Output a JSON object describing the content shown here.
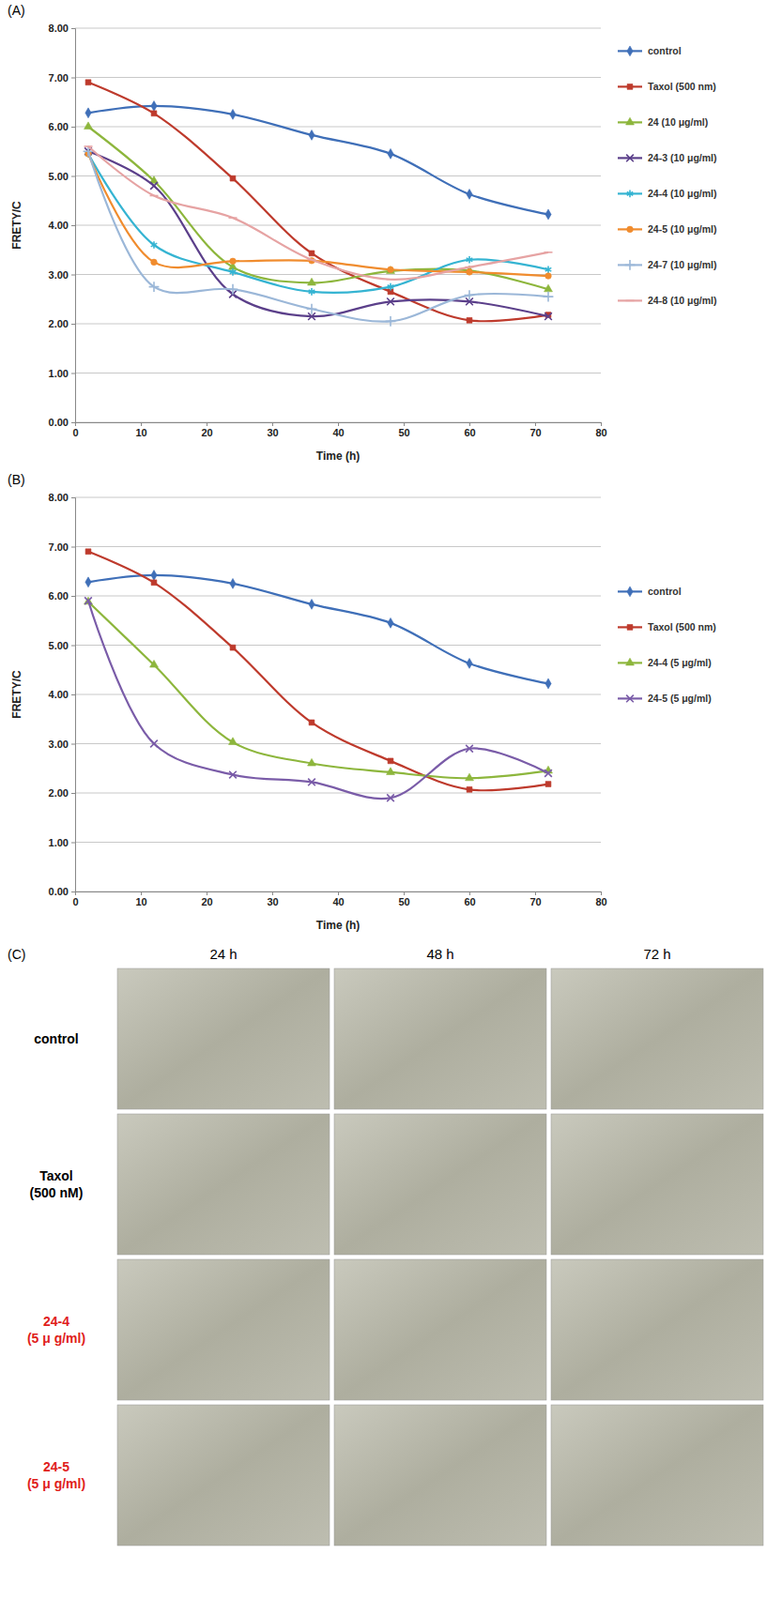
{
  "chart_data": [
    {
      "type": "line",
      "panel_label": "(A)",
      "x_label": "Time (h)",
      "y_label": "FRETY/C",
      "x": [
        2,
        12,
        24,
        36,
        48,
        60,
        72
      ],
      "xlim": [
        0,
        80
      ],
      "xticks": [
        0,
        10,
        20,
        30,
        40,
        50,
        60,
        70,
        80
      ],
      "ylim": [
        0,
        8
      ],
      "yticks": [
        {
          "value": 0,
          "label": "0.00"
        },
        {
          "value": 1,
          "label": "1.00"
        },
        {
          "value": 2,
          "label": "2.00"
        },
        {
          "value": 3,
          "label": "3.00"
        },
        {
          "value": 4,
          "label": "4.00"
        },
        {
          "value": 5,
          "label": "5.00"
        },
        {
          "value": 6,
          "label": "6.00"
        },
        {
          "value": 7,
          "label": "7.00"
        },
        {
          "value": 8,
          "label": "8.00"
        }
      ],
      "grid": true,
      "legend": "right",
      "line_style": "smooth",
      "series": [
        {
          "name": "control",
          "color": "#3f6fb8",
          "marker": "diamond",
          "values": [
            6.28,
            6.42,
            6.25,
            5.83,
            5.45,
            4.63,
            4.22
          ]
        },
        {
          "name": "Taxol (500 nm)",
          "color": "#be3a2c",
          "marker": "square",
          "values": [
            6.9,
            6.27,
            4.95,
            3.43,
            2.65,
            2.07,
            2.18
          ]
        },
        {
          "name": "24 (10 μg/ml)",
          "color": "#8db63c",
          "marker": "triangle",
          "values": [
            6.0,
            4.9,
            3.15,
            2.83,
            3.07,
            3.08,
            2.7
          ]
        },
        {
          "name": "24-3 (10 μg/ml)",
          "color": "#5b3f8a",
          "marker": "x",
          "values": [
            5.5,
            4.8,
            2.6,
            2.15,
            2.45,
            2.45,
            2.15
          ]
        },
        {
          "name": "24-4 (10 μg/ml)",
          "color": "#35b4d2",
          "marker": "asterisk",
          "values": [
            5.45,
            3.6,
            3.05,
            2.65,
            2.75,
            3.3,
            3.1
          ]
        },
        {
          "name": "24-5 (10 μg/ml)",
          "color": "#f08c2e",
          "marker": "circle",
          "values": [
            5.45,
            3.25,
            3.27,
            3.28,
            3.1,
            3.05,
            2.97
          ]
        },
        {
          "name": "24-7 (10 μg/ml)",
          "color": "#9bb7d8",
          "marker": "plus",
          "values": [
            5.5,
            2.75,
            2.7,
            2.3,
            2.05,
            2.58,
            2.55
          ]
        },
        {
          "name": "24-8 (10 μg/ml)",
          "color": "#e6a3a3",
          "marker": "dash",
          "values": [
            5.6,
            4.6,
            4.15,
            3.3,
            2.9,
            3.15,
            3.45
          ]
        }
      ]
    },
    {
      "type": "line",
      "panel_label": "(B)",
      "x_label": "Time (h)",
      "y_label": "FRETY/C",
      "x": [
        2,
        12,
        24,
        36,
        48,
        60,
        72
      ],
      "xlim": [
        0,
        80
      ],
      "xticks": [
        0,
        10,
        20,
        30,
        40,
        50,
        60,
        70,
        80
      ],
      "ylim": [
        0,
        8
      ],
      "yticks": [
        {
          "value": 0,
          "label": "0.00"
        },
        {
          "value": 1,
          "label": "1.00"
        },
        {
          "value": 2,
          "label": "2.00"
        },
        {
          "value": 3,
          "label": "3.00"
        },
        {
          "value": 4,
          "label": "4.00"
        },
        {
          "value": 5,
          "label": "5.00"
        },
        {
          "value": 6,
          "label": "6.00"
        },
        {
          "value": 7,
          "label": "7.00"
        },
        {
          "value": 8,
          "label": "8.00"
        }
      ],
      "grid": true,
      "legend": "right",
      "line_style": "smooth",
      "series": [
        {
          "name": "control",
          "color": "#3f6fb8",
          "marker": "diamond",
          "values": [
            6.28,
            6.42,
            6.25,
            5.83,
            5.45,
            4.63,
            4.22
          ]
        },
        {
          "name": "Taxol (500 nm)",
          "color": "#be3a2c",
          "marker": "square",
          "values": [
            6.9,
            6.27,
            4.95,
            3.43,
            2.65,
            2.07,
            2.18
          ]
        },
        {
          "name": "24-4 (5 μg/ml)",
          "color": "#8db63c",
          "marker": "triangle",
          "values": [
            5.88,
            4.6,
            3.03,
            2.6,
            2.42,
            2.3,
            2.45
          ]
        },
        {
          "name": "24-5 (5 μg/ml)",
          "color": "#7a5ca8",
          "marker": "x",
          "values": [
            5.9,
            3.0,
            2.37,
            2.22,
            1.9,
            2.9,
            2.4
          ]
        }
      ]
    }
  ],
  "image_panel": {
    "panel_label": "(C)",
    "columns": [
      "24 h",
      "48 h",
      "72 h"
    ],
    "rows": [
      {
        "label": "control",
        "color": "#000000"
      },
      {
        "label": "Taxol (500 nM)",
        "color": "#000000"
      },
      {
        "label": "24-4 (5 μ g/ml)",
        "color": "#e0201b"
      },
      {
        "label": "24-5 (5 μ g/ml)",
        "color": "#e0201b"
      }
    ]
  }
}
